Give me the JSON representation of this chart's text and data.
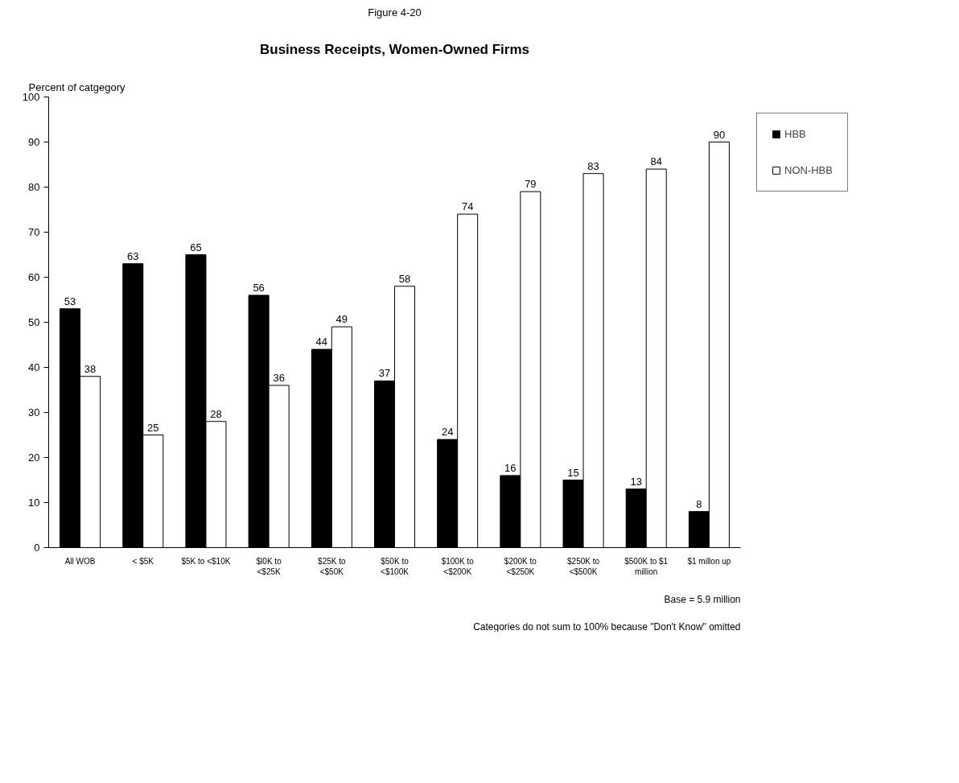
{
  "chart_data": {
    "type": "bar",
    "title": "Figure 4-20",
    "subtitle": "Business Receipts, Women-Owned Firms",
    "ylabel": "Percent of catgegory",
    "categories": [
      "All WOB",
      "< $5K",
      "$5K to <$10K",
      "$l0K to <$25K",
      "$25K to <$50K",
      "$50K to <$100K",
      "$100K to <$200K",
      "$200K to <$250K",
      "$250K to <$500K",
      "$500K to $1 million",
      "$1 millon up"
    ],
    "series": [
      {
        "name": "HBB",
        "color": "#000000",
        "values": [
          53,
          63,
          65,
          56,
          44,
          37,
          24,
          16,
          15,
          13,
          8
        ]
      },
      {
        "name": "NON-HBB",
        "color": "#ffffff",
        "values": [
          38,
          25,
          28,
          36,
          49,
          58,
          74,
          79,
          83,
          84,
          90
        ]
      }
    ],
    "ylim": [
      0,
      100
    ],
    "yticks": [
      0,
      10,
      20,
      30,
      40,
      50,
      60,
      70,
      80,
      90,
      100
    ],
    "data_labels": true,
    "grid": false,
    "legend": "right",
    "annotations": [
      "Base = 5.9 million",
      "Categories do not sum to 100% because \"Don't Know\" omitted"
    ]
  }
}
